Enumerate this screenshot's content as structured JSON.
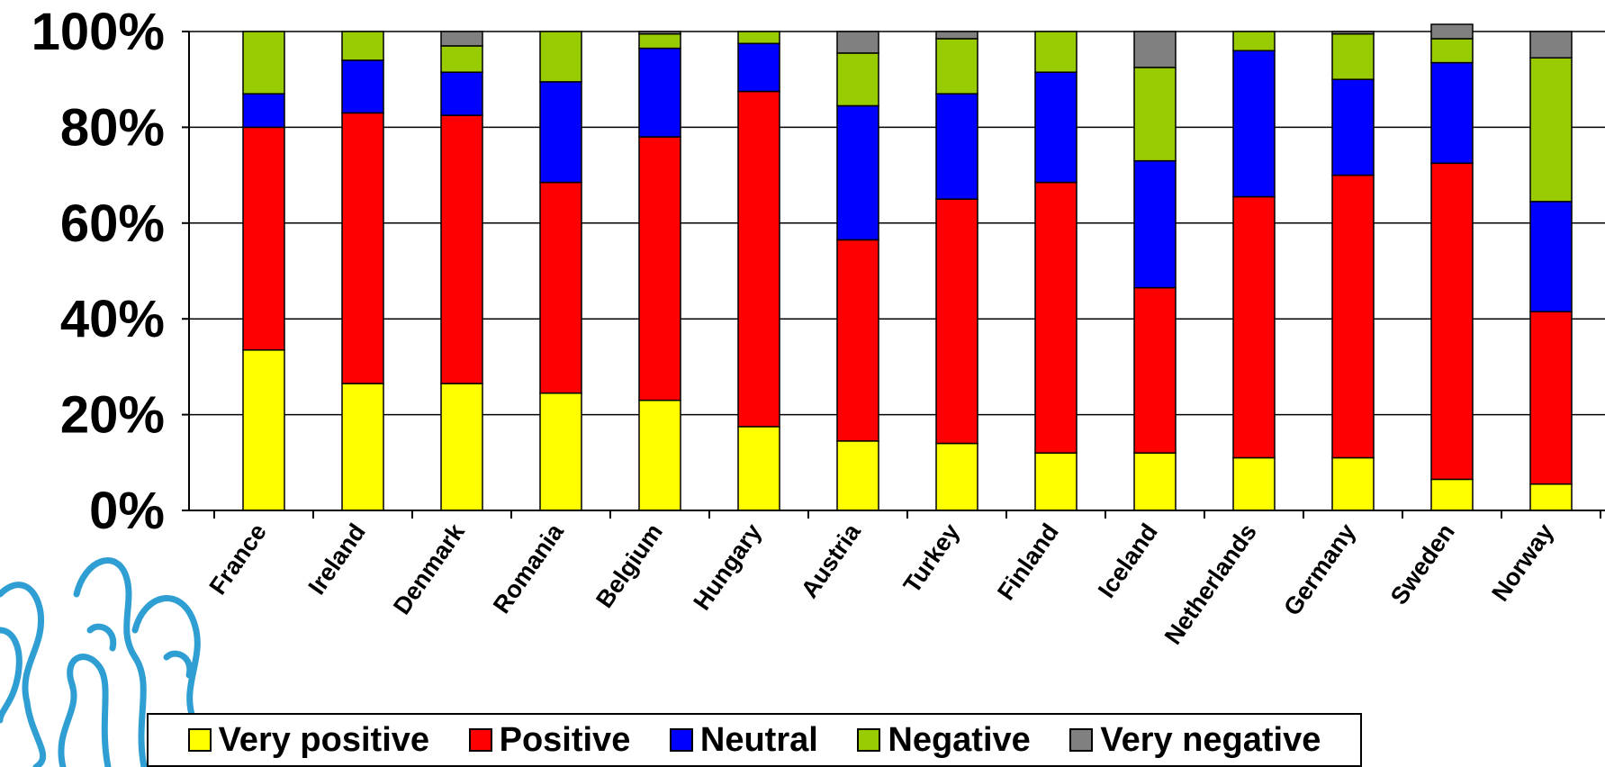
{
  "chart_data": {
    "type": "bar",
    "stacked": true,
    "categories": [
      "France",
      "Ireland",
      "Denmark",
      "Romania",
      "Belgium",
      "Hungary",
      "Austria",
      "Turkey",
      "Finland",
      "Iceland",
      "Netherlands",
      "Germany",
      "Sweden",
      "Norway"
    ],
    "series": [
      {
        "name": "Very positive",
        "color": "#ffff00",
        "values": [
          33.5,
          26.5,
          26.5,
          24.5,
          23.0,
          17.5,
          14.5,
          14.0,
          12.0,
          12.0,
          11.0,
          11.0,
          6.5,
          5.5
        ]
      },
      {
        "name": "Positive",
        "color": "#ff0000",
        "values": [
          46.5,
          56.5,
          56.0,
          44.0,
          55.0,
          70.0,
          42.0,
          51.0,
          56.5,
          34.5,
          54.5,
          59.0,
          66.0,
          36.0
        ]
      },
      {
        "name": "Neutral",
        "color": "#0000ff",
        "values": [
          7.0,
          11.0,
          9.0,
          21.0,
          18.5,
          10.0,
          28.0,
          22.0,
          23.0,
          26.5,
          30.5,
          20.0,
          21.0,
          23.0
        ]
      },
      {
        "name": "Negative",
        "color": "#99cc00",
        "values": [
          13.0,
          6.0,
          5.5,
          10.5,
          3.0,
          2.5,
          11.0,
          11.5,
          8.5,
          19.5,
          4.0,
          9.5,
          5.0,
          30.0
        ]
      },
      {
        "name": "Very negative",
        "color": "#808080",
        "values": [
          0.0,
          0.0,
          3.0,
          0.0,
          0.5,
          0.0,
          4.5,
          1.5,
          0.0,
          7.5,
          0.0,
          0.5,
          3.0,
          5.5
        ]
      }
    ],
    "y_ticks": [
      "0%",
      "20%",
      "40%",
      "60%",
      "80%",
      "100%"
    ],
    "ylim": [
      0,
      100
    ],
    "grid": true,
    "legend_position": "bottom"
  }
}
